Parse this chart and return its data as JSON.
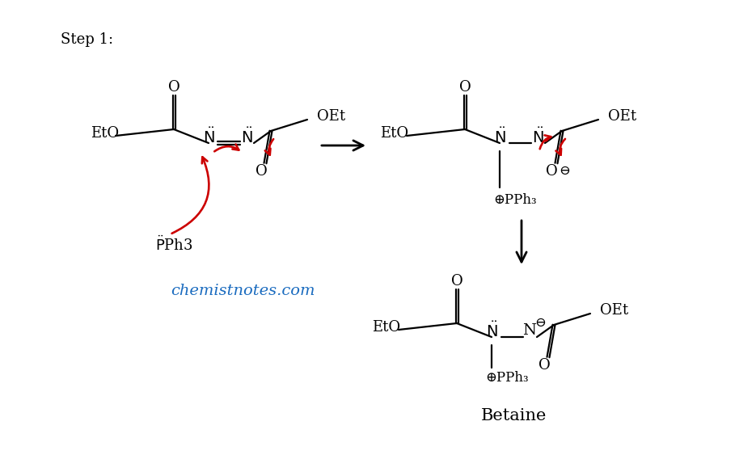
{
  "step_label": "Step 1:",
  "watermark": "chemistnotes.com",
  "watermark_color": "#1a6bbf",
  "bg_color": "#ffffff",
  "tc": "#000000",
  "rc": "#cc0000",
  "betaine_label": "Betaine",
  "fs": 13,
  "lw": 1.6
}
